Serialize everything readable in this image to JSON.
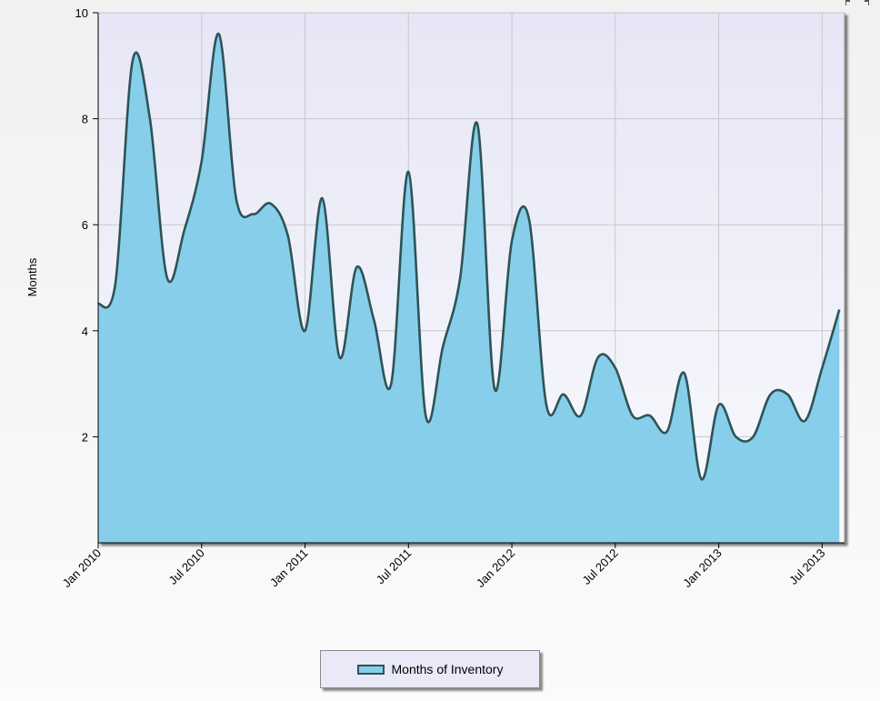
{
  "colors": {
    "plot_bg_top": "#e6e6f6",
    "plot_bg_bottom": "#f9f9fd",
    "fill": "#87ceeb",
    "line": "#2d5457",
    "grid": "#c8c8c8"
  },
  "chart_data": {
    "type": "area",
    "title": "",
    "xlabel": "",
    "ylabel": "Months",
    "ylim": [
      0,
      10
    ],
    "yticks": [
      2,
      4,
      6,
      8,
      10
    ],
    "x_tick_labels": [
      "Jan 2010",
      "Jul 2010",
      "Jan 2011",
      "Jul 2011",
      "Jan 2012",
      "Jul 2012",
      "Jan 2013",
      "Jul 2013"
    ],
    "grid": true,
    "legend_position": "bottom",
    "series": [
      {
        "name": "Months of Inventory",
        "x": [
          "2010-01",
          "2010-02",
          "2010-03",
          "2010-04",
          "2010-05",
          "2010-06",
          "2010-07",
          "2010-08",
          "2010-09",
          "2010-10",
          "2010-11",
          "2010-12",
          "2011-01",
          "2011-02",
          "2011-03",
          "2011-04",
          "2011-05",
          "2011-06",
          "2011-07",
          "2011-08",
          "2011-09",
          "2011-10",
          "2011-11",
          "2011-12",
          "2012-01",
          "2012-02",
          "2012-03",
          "2012-04",
          "2012-05",
          "2012-06",
          "2012-07",
          "2012-08",
          "2012-09",
          "2012-10",
          "2012-11",
          "2012-12",
          "2013-01",
          "2013-02",
          "2013-03",
          "2013-04",
          "2013-05",
          "2013-06",
          "2013-07",
          "2013-08"
        ],
        "values": [
          4.5,
          4.9,
          9.1,
          8.0,
          5.0,
          5.9,
          7.2,
          9.6,
          6.5,
          6.2,
          6.4,
          5.8,
          4.0,
          6.5,
          3.5,
          5.2,
          4.2,
          3.0,
          7.0,
          2.4,
          3.7,
          5.0,
          7.9,
          2.9,
          5.7,
          6.1,
          2.6,
          2.8,
          2.4,
          3.5,
          3.3,
          2.4,
          2.4,
          2.1,
          3.2,
          1.2,
          2.6,
          2.0,
          2.0,
          2.8,
          2.8,
          2.3,
          3.3,
          4.4
        ]
      }
    ]
  }
}
